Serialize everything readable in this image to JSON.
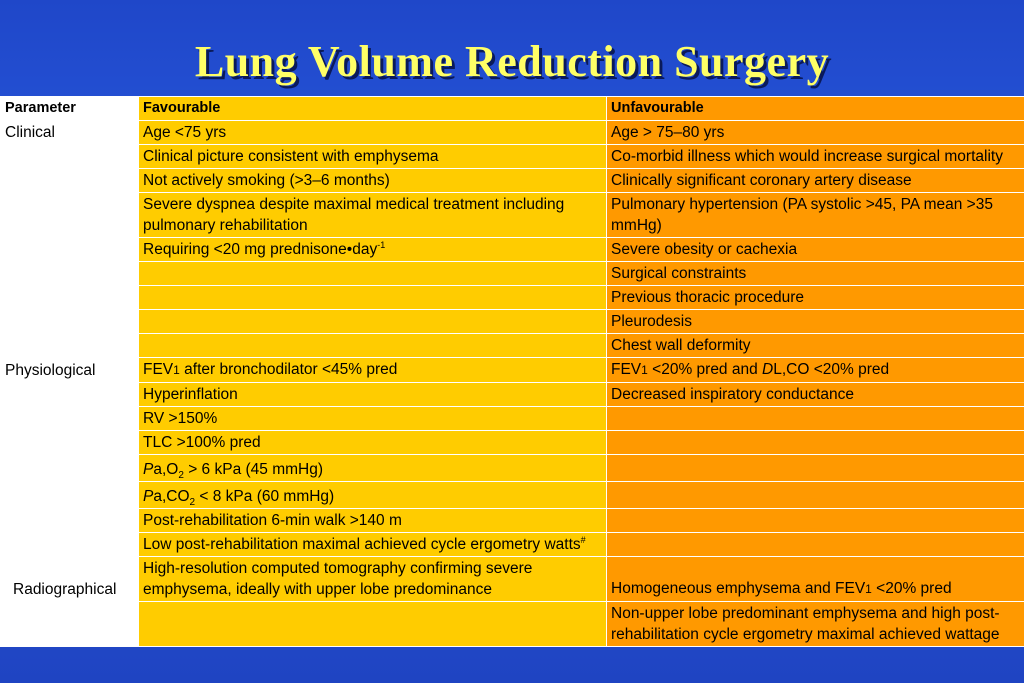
{
  "title": "Lung Volume Reduction Surgery",
  "headers": {
    "parameter": "Parameter",
    "favourable": "Favourable",
    "unfavourable": "Unfavourable"
  },
  "rows": {
    "r1": {
      "param": "Clinical",
      "fav": "Age <75 yrs",
      "unfav": "Age > 75–80 yrs"
    },
    "r2": {
      "fav": "Clinical picture consistent with emphysema",
      "unfav": "Co-morbid illness which would increase surgical mortality"
    },
    "r3": {
      "fav": "Not actively smoking (>3–6 months)",
      "unfav": "Clinically significant coronary artery disease"
    },
    "r4": {
      "fav": "Severe dyspnea despite maximal medical treatment including pulmonary rehabilitation",
      "unfav": "Pulmonary hypertension (PA systolic >45, PA mean >35 mmHg)"
    },
    "r5": {
      "fav_pre": "Requiring <20 mg prednisone•day",
      "fav_sup": "-1",
      "unfav": "Severe obesity or cachexia"
    },
    "r6": {
      "unfav": "Surgical constraints"
    },
    "r7": {
      "unfav": "Previous thoracic procedure"
    },
    "r8": {
      "unfav": "Pleurodesis"
    },
    "r9": {
      "unfav": "Chest wall deformity"
    },
    "r10": {
      "param": "Physiological",
      "fav_a": "FEV",
      "fav_b": "1",
      "fav_c": " after bronchodilator <45% pred",
      "unfav_a": "FEV",
      "unfav_b": "1",
      "unfav_c": " <20% pred and ",
      "unfav_d": "D",
      "unfav_e": "L,CO <20% pred"
    },
    "r11": {
      "fav": "Hyperinflation",
      "unfav": "Decreased inspiratory conductance"
    },
    "r12": {
      "fav": "RV >150%"
    },
    "r13": {
      "fav": "TLC >100% pred"
    },
    "r14": {
      "fav_a": "P",
      "fav_b": "a,O",
      "fav_c": "2",
      "fav_d": " > 6 kPa (45 mmHg)"
    },
    "r15": {
      "fav_a": "P",
      "fav_b": "a,CO",
      "fav_c": "2",
      "fav_d": " < 8 kPa (60 mmHg)"
    },
    "r16": {
      "fav": "Post-rehabilitation 6-min walk >140 m"
    },
    "r17": {
      "fav_pre": "Low post-rehabilitation maximal achieved cycle ergometry watts",
      "fav_sup": "#"
    },
    "r18": {
      "param": "Radiographical",
      "fav": "High-resolution computed tomography confirming severe emphysema, ideally with upper lobe predominance",
      "unfav_a": "Homogeneous emphysema and FEV",
      "unfav_b": "1",
      "unfav_c": " <20% pred"
    },
    "r19": {
      "unfav": "Non-upper lobe predominant emphysema and high post-rehabilitation cycle ergometry maximal achieved wattage"
    }
  }
}
